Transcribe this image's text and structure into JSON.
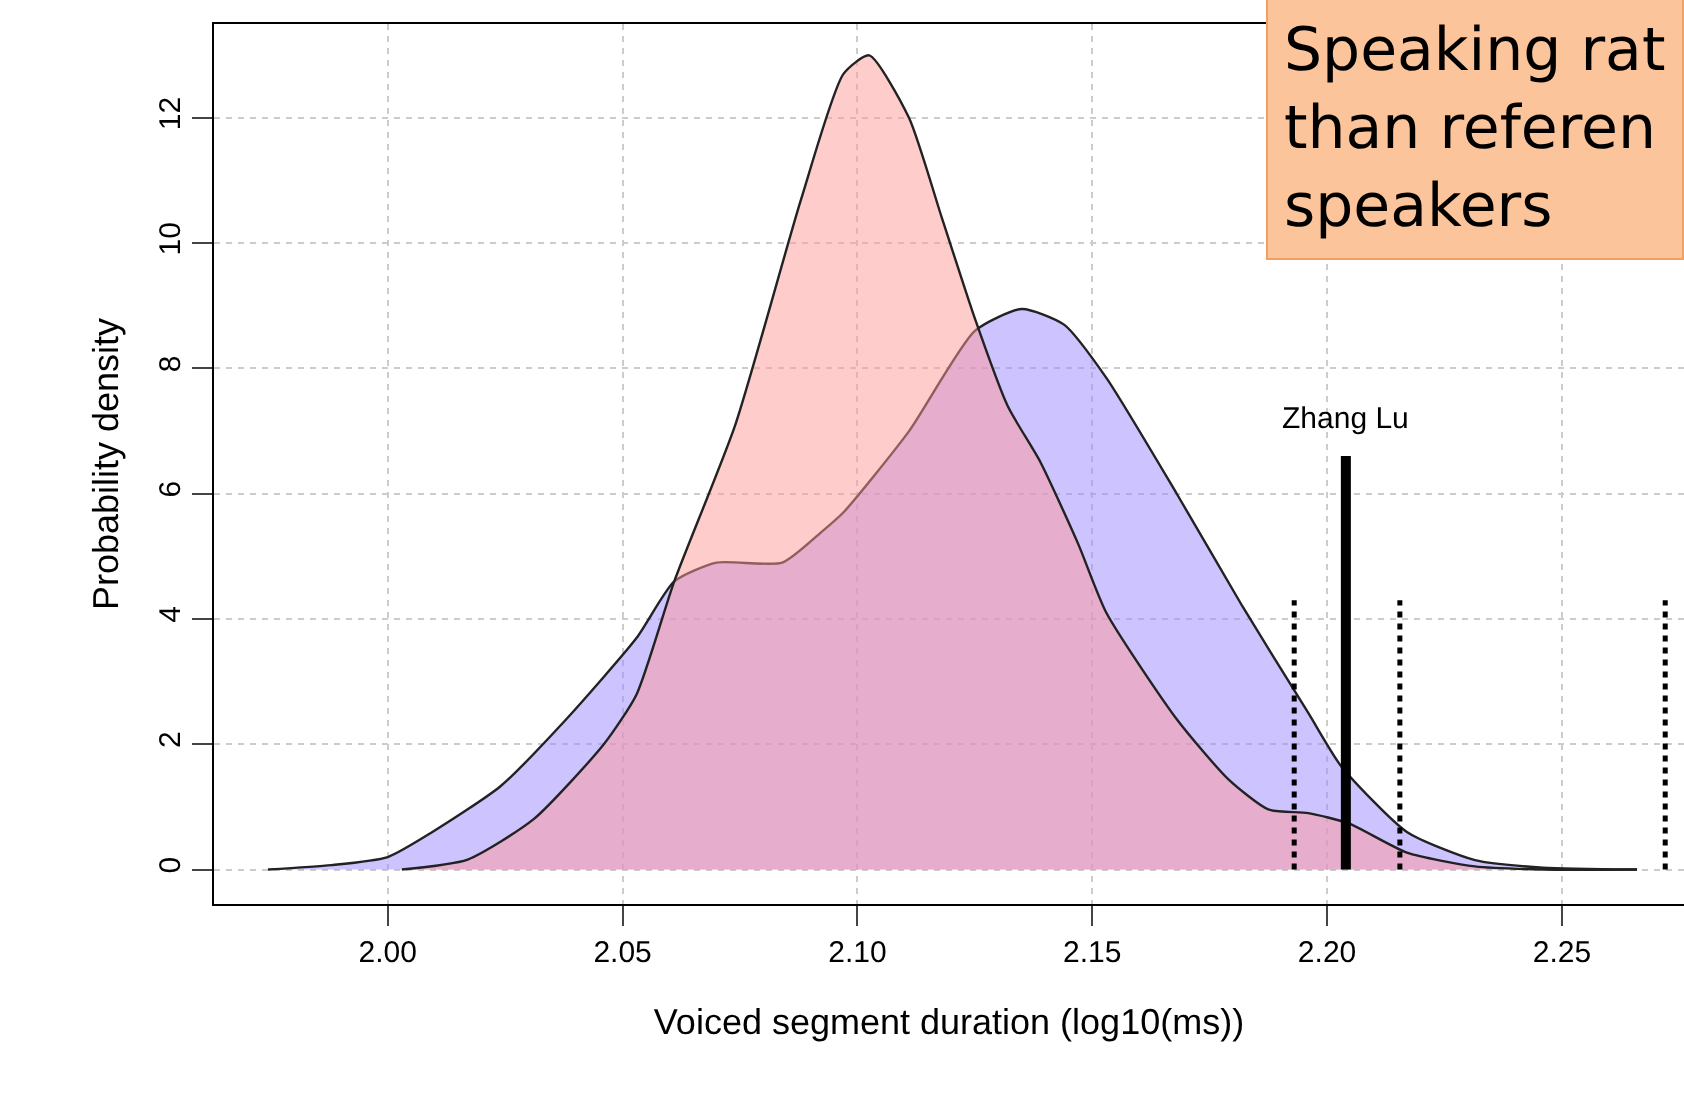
{
  "chart_data": {
    "type": "area",
    "xlabel": "Voiced segment duration (log10(ms))",
    "ylabel": "Probability density",
    "xlim": [
      1.963,
      2.276
    ],
    "ylim": [
      -0.55,
      13.5
    ],
    "xticks": [
      {
        "value": 2.0,
        "label": "2.00"
      },
      {
        "value": 2.05,
        "label": "2.05"
      },
      {
        "value": 2.1,
        "label": "2.10"
      },
      {
        "value": 2.15,
        "label": "2.15"
      },
      {
        "value": 2.2,
        "label": "2.20"
      },
      {
        "value": 2.25,
        "label": "2.25"
      }
    ],
    "yticks": [
      0,
      2,
      4,
      6,
      8,
      10,
      12
    ],
    "grid": true,
    "series": [
      {
        "color": "#9988ff",
        "x": [
          1.9745,
          1.988,
          2.0,
          2.0095,
          2.024,
          2.038,
          2.053,
          2.061,
          2.07,
          2.084,
          2.0925,
          2.097,
          2.111,
          2.125,
          2.135,
          2.144,
          2.153,
          2.168,
          2.182,
          2.196,
          2.203,
          2.217,
          2.2315,
          2.246,
          2.266
        ],
        "values": [
          0,
          0.07,
          0.2,
          0.6,
          1.33,
          2.4,
          3.7,
          4.6,
          4.9,
          4.9,
          5.4,
          5.7,
          7.0,
          8.6,
          8.95,
          8.7,
          7.85,
          6.0,
          4.2,
          2.5,
          1.65,
          0.6,
          0.15,
          0.03,
          0
        ]
      },
      {
        "color": "#ff9999",
        "x": [
          2.003,
          2.017,
          2.031,
          2.046,
          2.053,
          2.061,
          2.074,
          2.088,
          2.097,
          2.1025,
          2.111,
          2.118,
          2.125,
          2.132,
          2.139,
          2.147,
          2.153,
          2.168,
          2.179,
          2.1875,
          2.196,
          2.2045,
          2.217,
          2.2315,
          2.246,
          2.266
        ],
        "values": [
          0,
          0.16,
          0.8,
          2.0,
          2.8,
          4.6,
          7.1,
          10.7,
          12.7,
          13.0,
          12.0,
          10.4,
          8.8,
          7.4,
          6.5,
          5.2,
          4.1,
          2.4,
          1.44,
          0.96,
          0.9,
          0.74,
          0.27,
          0.05,
          0,
          0
        ]
      },
      {
        "type": "line",
        "color": "#000000",
        "line_style": "dotted",
        "x": [
          2.193,
          2.193,
          null,
          2.2155,
          2.2155,
          null,
          2.272,
          2.272
        ],
        "values": [
          0,
          4.3,
          null,
          0,
          4.3,
          null,
          0,
          4.3
        ]
      }
    ],
    "ref_lines": [
      {
        "axis": "x",
        "value": 2.204,
        "label": "Zhang Lu",
        "color": "#000000",
        "line_style": "solid"
      }
    ],
    "annotations": [
      "Speaking rat\nthan referen\nspeakers"
    ]
  }
}
